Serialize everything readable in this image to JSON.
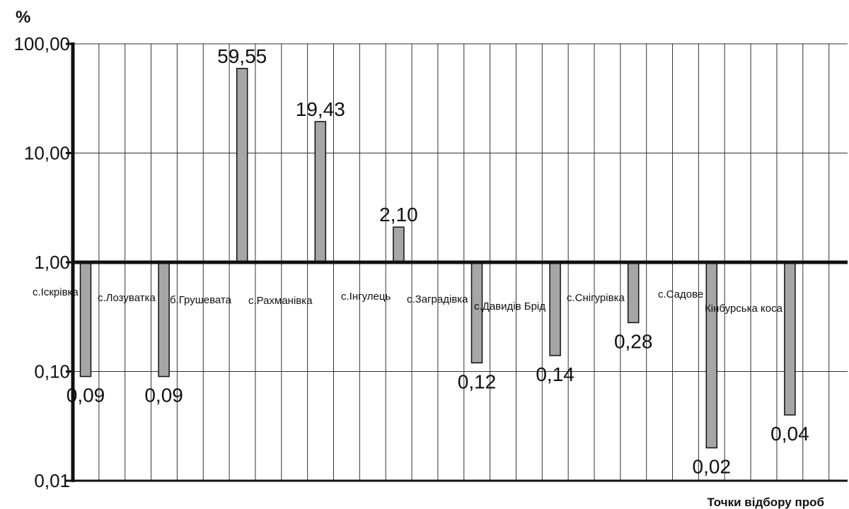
{
  "chart_data": {
    "type": "bar",
    "baseline": 1,
    "y_scale": "log",
    "ylim": [
      0.01,
      100
    ],
    "y_ticks": [
      "0,01",
      "0,10",
      "1,00",
      "10,00",
      "100,00"
    ],
    "y_tick_values": [
      0.01,
      0.1,
      1,
      10,
      100
    ],
    "ylabel": "%",
    "xlabel": "Точки відбору проб",
    "grid": true,
    "bar_color": "#a6a6a6",
    "categories": [
      "с.Іскрівка",
      "с.Лозуватка",
      "б.Грушевата",
      "с.Рахманівка",
      "с.Інгулець",
      "с.Заградівка",
      "с.Давидів Брід",
      "с.Снігурівка",
      "с.Садове",
      "Кінбурська коса"
    ],
    "values": [
      0.09,
      0.09,
      59.55,
      19.43,
      2.1,
      0.12,
      0.14,
      0.28,
      0.02,
      0.04
    ],
    "value_labels": [
      "0,09",
      "0,09",
      "59,55",
      "19,43",
      "2,10",
      "0,12",
      "0,14",
      "0,28",
      "0,02",
      "0,04"
    ]
  }
}
